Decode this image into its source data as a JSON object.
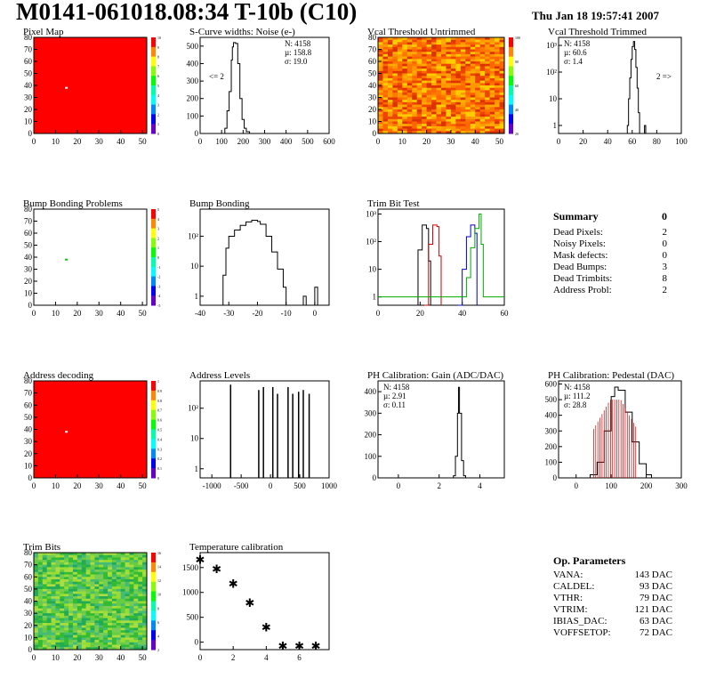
{
  "header": {
    "title": "M0141-061018.08:34 T-10b (C10)",
    "date": "Thu Jan 18 19:57:41 2007"
  },
  "summary": {
    "title": "Summary",
    "value": "0",
    "rows": [
      {
        "label": "Dead Pixels:",
        "value": "2"
      },
      {
        "label": "Noisy Pixels:",
        "value": "0"
      },
      {
        "label": "Mask defects:",
        "value": "0"
      },
      {
        "label": "Dead Bumps:",
        "value": "3"
      },
      {
        "label": "Dead Trimbits:",
        "value": "8"
      },
      {
        "label": "Address Probl:",
        "value": "2"
      }
    ]
  },
  "op_parameters": {
    "title": "Op. Parameters",
    "rows": [
      {
        "label": "VANA:",
        "value": "143 DAC"
      },
      {
        "label": "CALDEL:",
        "value": "93 DAC"
      },
      {
        "label": "VTHR:",
        "value": "79 DAC"
      },
      {
        "label": "VTRIM:",
        "value": "121 DAC"
      },
      {
        "label": "IBIAS_DAC:",
        "value": "63 DAC"
      },
      {
        "label": "VOFFSETOP:",
        "value": "72 DAC"
      }
    ]
  },
  "chart_data": [
    {
      "type": "heatmap",
      "title": "Pixel Map",
      "xlim": [
        0,
        52
      ],
      "ylim": [
        0,
        80
      ],
      "xticks": [
        0,
        10,
        20,
        30,
        40,
        50
      ],
      "yticks": [
        0,
        10,
        20,
        30,
        40,
        50,
        60,
        70,
        80
      ],
      "fill": "#ff0000",
      "hot_spot": [
        15,
        38
      ],
      "zticks": [
        "10",
        "9",
        "8",
        "7",
        "6",
        "5",
        "4",
        "3",
        "2",
        "1",
        "0"
      ]
    },
    {
      "type": "histogram",
      "title": "S-Curve widths: Noise (e-)",
      "xlim": [
        0,
        600
      ],
      "ylim": [
        0,
        550
      ],
      "xticks": [
        0,
        100,
        200,
        300,
        400,
        500,
        600
      ],
      "yticks": [
        0,
        100,
        200,
        300,
        400,
        500
      ],
      "stats": [
        {
          "k": "N:",
          "v": "4158"
        },
        {
          "k": "µ:",
          "v": "158.8"
        },
        {
          "k": "σ:",
          "v": "19.0"
        }
      ],
      "note": "<= 2",
      "series": [
        {
          "color": "#000000",
          "points": [
            [
              100,
              0
            ],
            [
              115,
              30
            ],
            [
              125,
              130
            ],
            [
              135,
              240
            ],
            [
              145,
              420
            ],
            [
              150,
              495
            ],
            [
              155,
              520
            ],
            [
              165,
              515
            ],
            [
              175,
              400
            ],
            [
              185,
              200
            ],
            [
              195,
              80
            ],
            [
              205,
              30
            ],
            [
              215,
              10
            ],
            [
              230,
              0
            ]
          ]
        }
      ]
    },
    {
      "type": "heatmap",
      "title": "Vcal Threshold Untrimmed",
      "xlim": [
        0,
        52
      ],
      "ylim": [
        0,
        80
      ],
      "xticks": [
        0,
        10,
        20,
        30,
        40,
        50
      ],
      "yticks": [
        0,
        10,
        20,
        30,
        40,
        50,
        60,
        70,
        80
      ],
      "fill": "#ff8800",
      "noise": true,
      "zticks": [
        "100",
        "80",
        "60",
        "40",
        "20"
      ]
    },
    {
      "type": "histogram",
      "title": "Vcal Threshold Trimmed",
      "xlim": [
        0,
        100
      ],
      "log": true,
      "ylim": [
        0.5,
        2000
      ],
      "xticks": [
        0,
        20,
        40,
        60,
        80,
        100
      ],
      "yticks": [
        1,
        10,
        100,
        1000
      ],
      "stats": [
        {
          "k": "N:",
          "v": "4158"
        },
        {
          "k": "µ:",
          "v": "60.6"
        },
        {
          "k": "σ:",
          "v": "1.4"
        }
      ],
      "note": "2 =>",
      "series": [
        {
          "color": "#000000",
          "points": [
            [
              52,
              0.5
            ],
            [
              56,
              1
            ],
            [
              57,
              10
            ],
            [
              58,
              60
            ],
            [
              59,
              300
            ],
            [
              60,
              900
            ],
            [
              61,
              1400
            ],
            [
              62,
              700
            ],
            [
              63,
              150
            ],
            [
              64,
              25
            ],
            [
              65,
              3
            ],
            [
              66,
              0.5
            ],
            [
              70,
              1
            ],
            [
              71,
              0.5
            ]
          ]
        }
      ]
    },
    {
      "type": "heatmap",
      "title": "Bump Bonding Problems",
      "xlim": [
        0,
        52
      ],
      "ylim": [
        0,
        80
      ],
      "xticks": [
        0,
        10,
        20,
        30,
        40,
        50
      ],
      "yticks": [
        0,
        10,
        20,
        30,
        40,
        50,
        60,
        70,
        80
      ],
      "fill": "#ffffff",
      "hot_spot": [
        15,
        38
      ],
      "hot_color": "#00cc00",
      "zticks": [
        "5",
        "4",
        "3",
        "2",
        "1",
        "0",
        "-1",
        "-2",
        "-3",
        "-4",
        "-5"
      ]
    },
    {
      "type": "histogram",
      "title": "Bump Bonding",
      "xlim": [
        -40,
        5
      ],
      "log": true,
      "ylim": [
        0.5,
        800
      ],
      "xticks": [
        -40,
        -30,
        -20,
        -10,
        0
      ],
      "yticks": [
        1,
        10,
        100
      ],
      "series": [
        {
          "color": "#000000",
          "points": [
            [
              -33,
              0.5
            ],
            [
              -32,
              5
            ],
            [
              -31,
              40
            ],
            [
              -30,
              100
            ],
            [
              -28,
              160
            ],
            [
              -26,
              230
            ],
            [
              -24,
              300
            ],
            [
              -22,
              340
            ],
            [
              -20,
              310
            ],
            [
              -19,
              250
            ],
            [
              -17,
              100
            ],
            [
              -15,
              30
            ],
            [
              -13,
              8
            ],
            [
              -11,
              2
            ],
            [
              -10,
              0.5
            ],
            [
              -4,
              1
            ],
            [
              -3,
              0.5
            ],
            [
              0,
              2
            ],
            [
              1,
              0.5
            ]
          ]
        }
      ]
    },
    {
      "type": "histogram",
      "title": "Trim Bit Test",
      "xlim": [
        0,
        60
      ],
      "log": true,
      "ylim": [
        0.5,
        1500
      ],
      "xticks": [
        0,
        20,
        40,
        60
      ],
      "yticks": [
        1,
        10,
        100,
        1000
      ],
      "series": [
        {
          "color": "#000000",
          "points": [
            [
              17,
              0.5
            ],
            [
              19,
              50
            ],
            [
              21,
              400
            ],
            [
              23,
              300
            ],
            [
              24,
              20
            ],
            [
              25,
              0.5
            ]
          ]
        },
        {
          "color": "#cc0000",
          "points": [
            [
              22,
              0.5
            ],
            [
              24,
              80
            ],
            [
              26,
              400
            ],
            [
              28,
              350
            ],
            [
              29,
              30
            ],
            [
              30,
              0.5
            ]
          ]
        },
        {
          "color": "#0000cc",
          "points": [
            [
              38,
              0.5
            ],
            [
              40,
              10
            ],
            [
              42,
              150
            ],
            [
              44,
              400
            ],
            [
              46,
              200
            ],
            [
              47,
              0.5
            ]
          ]
        },
        {
          "color": "#00aa00",
          "points": [
            [
              0,
              1
            ],
            [
              40,
              1
            ],
            [
              42,
              5
            ],
            [
              44,
              60
            ],
            [
              46,
              300
            ],
            [
              48,
              1000
            ],
            [
              49,
              80
            ],
            [
              50,
              1
            ],
            [
              60,
              1
            ]
          ]
        }
      ]
    },
    {
      "type": "heatmap",
      "title": "Address decoding",
      "xlim": [
        0,
        52
      ],
      "ylim": [
        0,
        80
      ],
      "xticks": [
        0,
        10,
        20,
        30,
        40,
        50
      ],
      "yticks": [
        0,
        10,
        20,
        30,
        40,
        50,
        60,
        70,
        80
      ],
      "fill": "#ff0000",
      "hot_spot": [
        15,
        38
      ],
      "zticks": [
        "1",
        "0.9",
        "0.8",
        "0.7",
        "0.6",
        "0.5",
        "0.4",
        "0.3",
        "0.2",
        "0.1",
        "0"
      ]
    },
    {
      "type": "spikes",
      "title": "Address Levels",
      "xlim": [
        -1200,
        1000
      ],
      "log": true,
      "ylim": [
        0.5,
        800
      ],
      "xticks": [
        -1000,
        -500,
        0,
        500,
        1000
      ],
      "yticks": [
        1,
        10,
        100
      ],
      "peaks": [
        [
          -680,
          600
        ],
        [
          -200,
          400
        ],
        [
          -120,
          500
        ],
        [
          40,
          500
        ],
        [
          120,
          300
        ],
        [
          300,
          500
        ],
        [
          380,
          300
        ],
        [
          480,
          350
        ],
        [
          560,
          400
        ],
        [
          660,
          300
        ]
      ]
    },
    {
      "type": "histogram",
      "title": "PH Calibration: Gain (ADC/DAC)",
      "xlim": [
        -1,
        5.2
      ],
      "ylim": [
        0,
        450
      ],
      "xticks": [
        0,
        2,
        4
      ],
      "yticks": [
        0,
        100,
        200,
        300,
        400
      ],
      "stats": [
        {
          "k": "N:",
          "v": "4158"
        },
        {
          "k": "µ:",
          "v": "2.91"
        },
        {
          "k": "σ:",
          "v": "0.11"
        }
      ],
      "series": [
        {
          "color": "#000000",
          "points": [
            [
              2.5,
              0
            ],
            [
              2.7,
              10
            ],
            [
              2.8,
              100
            ],
            [
              2.9,
              300
            ],
            [
              2.95,
              420
            ],
            [
              3.0,
              300
            ],
            [
              3.1,
              80
            ],
            [
              3.2,
              10
            ],
            [
              3.3,
              0
            ]
          ]
        }
      ]
    },
    {
      "type": "histogram",
      "title": "PH Calibration: Pedestal (DAC)",
      "xlim": [
        -50,
        300
      ],
      "ylim": [
        0,
        620
      ],
      "xticks": [
        0,
        100,
        200,
        300
      ],
      "yticks": [
        0,
        100,
        200,
        300,
        400,
        500,
        600
      ],
      "stats": [
        {
          "k": "N:",
          "v": "4158"
        },
        {
          "k": "µ:",
          "v": "111.2",
          "color": "#cc0000"
        },
        {
          "k": "σ:",
          "v": "28.8",
          "color": "#cc0000"
        }
      ],
      "series": [
        {
          "color": "#000000",
          "points": [
            [
              20,
              0
            ],
            [
              40,
              20
            ],
            [
              60,
              100
            ],
            [
              80,
              300
            ],
            [
              100,
              520
            ],
            [
              110,
              580
            ],
            [
              120,
              560
            ],
            [
              140,
              420
            ],
            [
              160,
              230
            ],
            [
              180,
              90
            ],
            [
              200,
              20
            ],
            [
              215,
              0
            ]
          ]
        }
      ],
      "band": {
        "color": "#cc0000",
        "lo": 50,
        "hi": 175
      }
    },
    {
      "type": "heatmap",
      "title": "Trim Bits",
      "xlim": [
        0,
        52
      ],
      "ylim": [
        0,
        80
      ],
      "xticks": [
        0,
        10,
        20,
        30,
        40,
        50
      ],
      "yticks": [
        0,
        10,
        20,
        30,
        40,
        50,
        60,
        70,
        80
      ],
      "fill": "#55cc44",
      "noise": true,
      "green": true,
      "zticks": [
        "16",
        "14",
        "12",
        "10",
        "8",
        "6",
        "4",
        "2"
      ]
    },
    {
      "type": "scatter",
      "title": "Temperature calibration",
      "xlim": [
        0,
        7.8
      ],
      "ylim": [
        -150,
        1800
      ],
      "xticks": [
        0,
        2,
        4,
        6
      ],
      "yticks": [
        0,
        500,
        1000,
        1500
      ],
      "x": [
        0,
        1,
        2,
        3,
        4,
        5,
        6,
        7
      ],
      "y": [
        1680,
        1500,
        1200,
        820,
        320,
        -50,
        -50,
        -50
      ]
    }
  ]
}
